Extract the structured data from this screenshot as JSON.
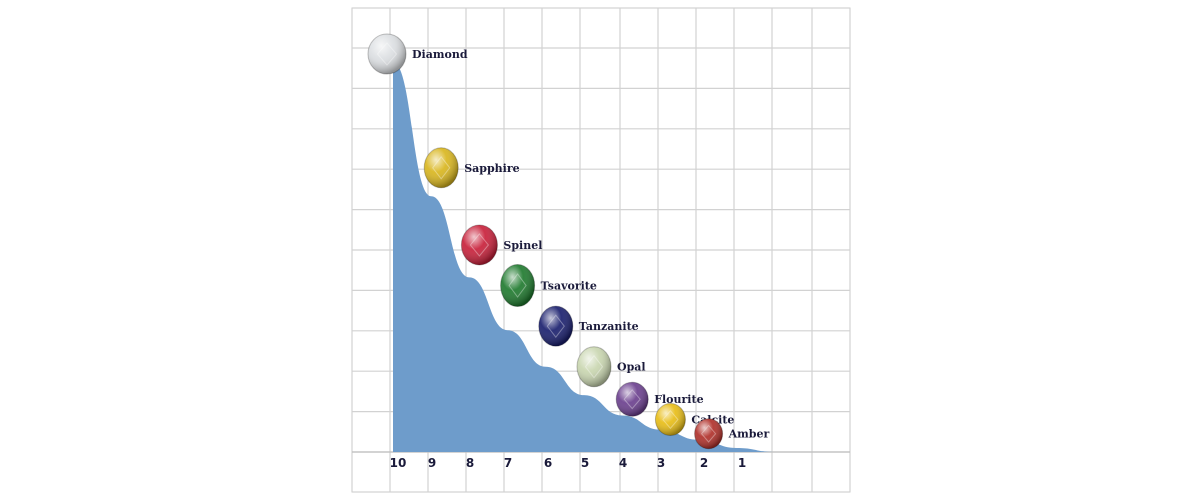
{
  "chart_data": {
    "type": "area",
    "title": "",
    "xlabel": "",
    "ylabel": "",
    "x_ticks": [
      "10",
      "9",
      "8",
      "7",
      "6",
      "5",
      "4",
      "3",
      "2",
      "1"
    ],
    "x_reversed": true,
    "grid": true,
    "area_color": "#6e9ccb",
    "points": [
      {
        "name": "Diamond",
        "x": 10,
        "y": 10,
        "color": "#dcdfe2"
      },
      {
        "name": "Sapphire",
        "x": 9,
        "y": 7,
        "color": "#d9b61e"
      },
      {
        "name": "Spinel",
        "x": 8,
        "y": 5.1,
        "color": "#c8203a"
      },
      {
        "name": "Tsavorite",
        "x": 7,
        "y": 4.1,
        "color": "#1f7a2e"
      },
      {
        "name": "Tanzanite",
        "x": 6,
        "y": 3.1,
        "color": "#1a1f6e"
      },
      {
        "name": "Opal",
        "x": 5,
        "y": 2.1,
        "color": "#c9d6b0"
      },
      {
        "name": "Flourite",
        "x": 4,
        "y": 1.3,
        "color": "#6b3f8e"
      },
      {
        "name": "Calcite",
        "x": 3,
        "y": 0.8,
        "color": "#e8bd16"
      },
      {
        "name": "Amber",
        "x": 2,
        "y": 0.45,
        "color": "#b0302a"
      }
    ],
    "curve": {
      "x": [
        10,
        9,
        8,
        7,
        6,
        5,
        4,
        3,
        2,
        1,
        0
      ],
      "y": [
        9.6,
        6.3,
        4.3,
        3.0,
        2.1,
        1.4,
        0.9,
        0.55,
        0.3,
        0.1,
        0
      ]
    }
  }
}
